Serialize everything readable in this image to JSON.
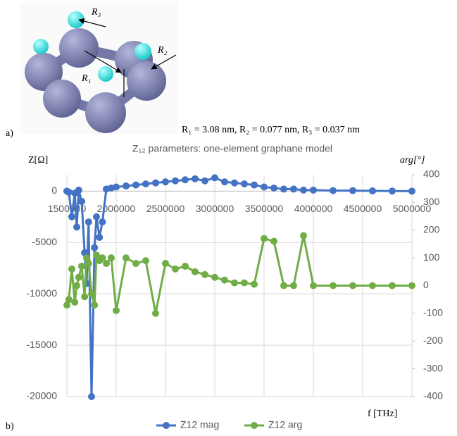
{
  "panel_a": {
    "label": "a)",
    "r_labels": [
      "R₃",
      "R₂",
      "R₁"
    ],
    "caption": "R₁ = 3.08 nm, R₂ = 0.077 nm, R₃ = 0.037 nm"
  },
  "chart_data": {
    "type": "line",
    "panel_label": "b)",
    "title": "Z₁₂ parameters: one-element graphane model",
    "ylabel": "Z[Ω]",
    "y2label": "arg[°]",
    "xlabel": "f [THz]",
    "x": [
      1500000,
      1520000,
      1550000,
      1580000,
      1600000,
      1620000,
      1650000,
      1680000,
      1700000,
      1720000,
      1750000,
      1780000,
      1800000,
      1830000,
      1860000,
      1900000,
      1950000,
      2000000,
      2100000,
      2200000,
      2300000,
      2400000,
      2500000,
      2600000,
      2700000,
      2800000,
      2900000,
      3000000,
      3100000,
      3200000,
      3300000,
      3400000,
      3500000,
      3600000,
      3700000,
      3800000,
      3900000,
      4000000,
      4200000,
      4400000,
      4600000,
      4800000,
      5000000
    ],
    "series": [
      {
        "name": "Z12 mag",
        "color": "#4472c4",
        "axis": "y",
        "values": [
          0,
          -100,
          -2500,
          -200,
          -3500,
          100,
          -1000,
          -6000,
          -9000,
          -3000,
          -20000,
          -5500,
          -2500,
          -4500,
          -3000,
          200,
          300,
          400,
          500,
          600,
          700,
          800,
          900,
          1000,
          1100,
          1200,
          1000,
          1300,
          900,
          800,
          700,
          600,
          400,
          300,
          200,
          200,
          100,
          100,
          50,
          50,
          20,
          10,
          0
        ]
      },
      {
        "name": "Z12 arg",
        "color": "#70ad47",
        "axis": "y2",
        "values": [
          -70,
          -50,
          60,
          -60,
          0,
          30,
          70,
          -40,
          100,
          80,
          -30,
          -70,
          110,
          90,
          100,
          80,
          100,
          -90,
          100,
          80,
          90,
          -100,
          80,
          60,
          70,
          50,
          40,
          30,
          20,
          10,
          10,
          5,
          170,
          160,
          0,
          0,
          180,
          0,
          0,
          0,
          0,
          0,
          0
        ]
      }
    ],
    "xlim": [
      1500000,
      5000000
    ],
    "xticks": [
      1500000,
      2000000,
      2500000,
      3000000,
      3500000,
      4000000,
      4500000,
      5000000
    ],
    "ylim": [
      -20000,
      1600
    ],
    "yticks": [
      -20000,
      -15000,
      -10000,
      -5000,
      0
    ],
    "y2lim": [
      -400,
      400
    ],
    "y2ticks": [
      -400,
      -300,
      -200,
      -100,
      0,
      100,
      200,
      300,
      400
    ],
    "grid": true,
    "legend": "bottom"
  }
}
